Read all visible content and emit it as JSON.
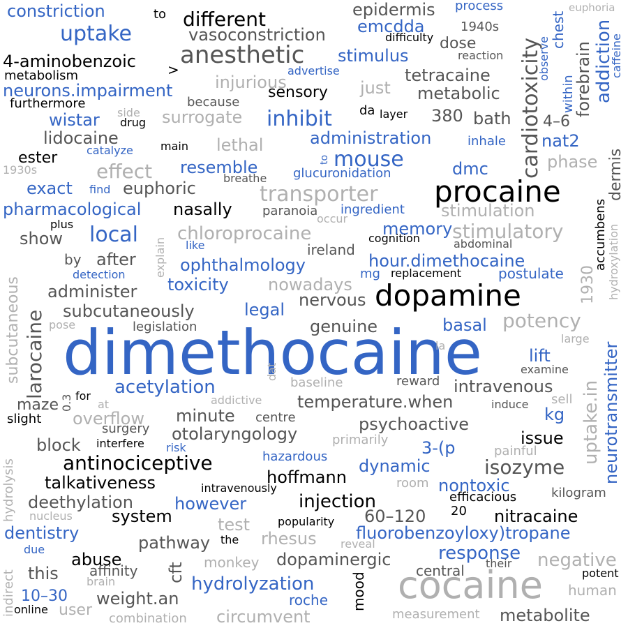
{
  "words": {
    "dimethocaine": "dimethocaine",
    "cocaine": "cocaine",
    "procaine": "procaine",
    "dopamine": "dopamine",
    "anesthetic": "anesthetic",
    "transporter": "transporter",
    "uptake": "uptake",
    "constriction": "constriction",
    "to": "to",
    "different": "different",
    "epidermis": "epidermis",
    "process": "process",
    "cardiotoxicity": "cardiotoxicity",
    "chest": "chest",
    "euphoria": "euphoria",
    "emcdda": "emcdda",
    "n1940s": "1940s",
    "forebrain": "forebrain",
    "addiction": "addiction",
    "vasoconstriction": "vasoconstriction",
    "difficulty": "difficulty",
    "dose": "dose",
    "caffeine": "caffeine",
    "aminobenzoic": "4-aminobenzoic",
    "stimulus": "stimulus",
    "reaction": "reaction",
    "observe": "observe",
    "within": "within",
    "metabolism": "metabolism",
    "gt": ">",
    "advertise": "advertise",
    "tetracaine": "tetracaine",
    "neurons_impairment": "neurons.impairment",
    "injurious": "injurious",
    "sensory": "sensory",
    "just": "just",
    "metabolic": "metabolic",
    "furthermore": "furthermore",
    "because": "because",
    "inhibit": "inhibit",
    "da": "da",
    "layer": "layer",
    "n380": "380",
    "bath": "bath",
    "four_six": "4–6",
    "dermis": "dermis",
    "wistar": "wistar",
    "side": "side",
    "drug": "drug",
    "surrogate": "surrogate",
    "lidocaine": "lidocaine",
    "administration": "administration",
    "inhale": "inhale",
    "nat2": "nat2",
    "lethal": "lethal",
    "ester": "ester",
    "catalyze": "catalyze",
    "main": "main",
    "to2": "to",
    "mouse": "mouse",
    "phase": "phase",
    "effect": "effect",
    "resemble": "resemble",
    "glucuronidation": "glucuronidation",
    "dmc": "dmc",
    "n1930s": "1930s",
    "breathe": "breathe",
    "exact": "exact",
    "find": "find",
    "euphoric": "euphoric",
    "pharmacological": "pharmacological",
    "nasally": "nasally",
    "paranoia": "paranoia",
    "ingredient": "ingredient",
    "stimulation": "stimulation",
    "accumbens": "accumbens",
    "plus": "plus",
    "occur": "occur",
    "local": "local",
    "chloroprocaine": "chloroprocaine",
    "memory": "memory",
    "stimulatory": "stimulatory",
    "hydroxylation": "hydroxylation",
    "show": "show",
    "explain": "explain",
    "like": "like",
    "ireland": "ireland",
    "cognition": "cognition",
    "abdominal": "abdominal",
    "by": "by",
    "after": "after",
    "ophthalmology": "ophthalmology",
    "hour_dimethocaine": "hour.dimethocaine",
    "detection": "detection",
    "mg": "mg",
    "replacement": "replacement",
    "postulate": "postulate",
    "n1930": "1930",
    "subcutaneous": "subcutaneous",
    "larocaine": "larocaine",
    "administer": "administer",
    "toxicity": "toxicity",
    "nowadays": "nowadays",
    "uptake_in": "uptake.in",
    "neurotransmitter": "neurotransmitter",
    "subcutaneously": "subcutaneously",
    "legal": "legal",
    "nervous": "nervous",
    "pose": "pose",
    "legislation": "legislation",
    "genuine": "genuine",
    "basal": "basal",
    "potency": "potency",
    "large": "large",
    "la": "la",
    "lift": "lift",
    "examine": "examine",
    "dat": "dat",
    "acetylation": "acetylation",
    "baseline": "baseline",
    "reward": "reward",
    "intravenous": "intravenous",
    "n03": "0.3",
    "for": "for",
    "addictive": "addictive",
    "maze": "maze",
    "at": "at",
    "temperature_when": "temperature.when",
    "induce": "induce",
    "sell": "sell",
    "slight": "slight",
    "overflow": "overflow",
    "minute": "minute",
    "centre": "centre",
    "psychoactive": "psychoactive",
    "kg": "kg",
    "surgery": "surgery",
    "otolaryngology": "otolaryngology",
    "issue": "issue",
    "hydrolysis": "hydrolysis",
    "block": "block",
    "interfere": "interfere",
    "risk": "risk",
    "primarily": "primarily",
    "three_p": "3-(p",
    "painful": "painful",
    "antinociceptive": "antinociceptive",
    "hazardous": "hazardous",
    "dynamic": "dynamic",
    "isozyme": "isozyme",
    "talkativeness": "talkativeness",
    "hoffmann": "hoffmann",
    "room": "room",
    "nontoxic": "nontoxic",
    "intravenously": "intravenously",
    "kilogram": "kilogram",
    "deethylation": "deethylation",
    "however": "however",
    "injection": "injection",
    "efficacious": "efficacious",
    "nucleus": "nucleus",
    "system": "system",
    "test": "test",
    "n60_120": "60–120",
    "n20": "20",
    "nitracaine": "nitracaine",
    "dentistry": "dentistry",
    "rhesus": "rhesus",
    "popularity": "popularity",
    "fluorobenzoyloxy": "fluorobenzoyloxy)tropane",
    "pathway": "pathway",
    "the": "the",
    "reveal": "reveal",
    "indirect": "indirect",
    "due": "due",
    "abuse": "abuse",
    "cft": "cft",
    "response": "response",
    "dopaminergic": "dopaminergic",
    "their": "their",
    "negative": "negative",
    "monkey": "monkey",
    "this": "this",
    "affinity": "affinity",
    "brain": "brain",
    "central": "central",
    "potent": "potent",
    "hydrolyzation": "hydrolyzation",
    "n10_30": "10–30",
    "mood": "mood",
    "human": "human",
    "weight_an": "weight.an",
    "roche": "roche",
    "online": "online",
    "user": "user",
    "circumvent": "circumvent",
    "measurement": "measurement",
    "metabolite": "metabolite",
    "combination": "combination"
  }
}
